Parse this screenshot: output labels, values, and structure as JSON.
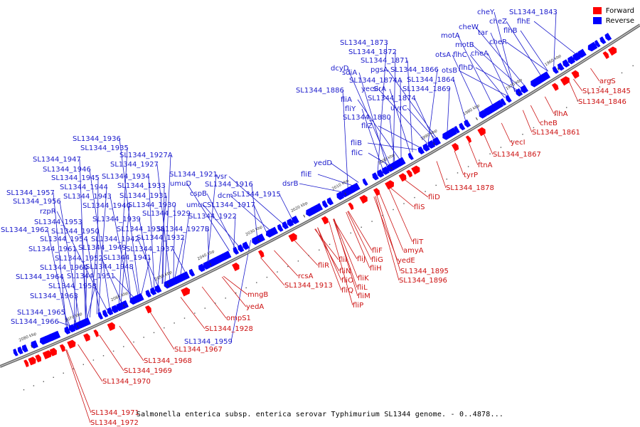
{
  "colors": {
    "forward": "#ff0000",
    "reverse": "#0000ff",
    "backbone": "#777777"
  },
  "legend": {
    "forward": "Forward",
    "reverse": "Reverse"
  },
  "caption": "Salmonella enterica subsp. enterica serovar Typhimurium SL1344 genome. - 0..4878...",
  "ticks": [
    "1960 kbp",
    "1970 kbp",
    "1980 kbp",
    "1990 kbp",
    "2000 kbp",
    "2010 kbp",
    "2020 kbp",
    "2030 kbp",
    "2040 kbp",
    "2050 kbp",
    "2060 kbp",
    "2070 kbp",
    "2080 kbp"
  ],
  "reverse_labels": [
    "cheY",
    "SL1344_1843",
    "cheZ",
    "flhE",
    "cheW",
    "tar",
    "flhB",
    "motA",
    "cheR",
    "motB",
    "cheA",
    "otsA",
    "flhC",
    "flhD",
    "otsB",
    "SL1344_1873",
    "SL1344_1872",
    "SL1344_1871",
    "dcyD",
    "pgsA",
    "SL1344_1866",
    "sdiA",
    "SL1344_1874A",
    "SL1344_1864",
    "yecS",
    "sirA",
    "SL1344_1869",
    "SL1344_1886",
    "fliA",
    "SL1344_1874",
    "fliY",
    "uvrC",
    "SL1344_1880",
    "fliZ",
    "fliB",
    "fliC",
    "yedD",
    "fliE",
    "dsrB",
    "SL1344_1936",
    "SL1344_1935",
    "SL1344_1927A",
    "SL1344_1947",
    "SL1344_1927",
    "SL1344_1946",
    "SL1344_1921",
    "SL1344_1945",
    "SL1344_1934",
    "umuD",
    "vsr",
    "SL1344_1944",
    "SL1344_1933",
    "SL1344_1916",
    "SL1344_1957",
    "SL1344_1943",
    "SL1344_1931",
    "cspB",
    "dcm",
    "SL1344_1915",
    "SL1344_1956",
    "SL1344_1940",
    "SL1344_1930",
    "umuC",
    "SL1344_1917",
    "rzpR",
    "SL1344_1929",
    "SL1344_1922",
    "SL1344_1953",
    "SL1344_1939",
    "SL1344_1962",
    "SL1344_1950",
    "SL1344_1938",
    "SL1344_1927B",
    "SL1344_1954",
    "SL1344_1942",
    "SL1344_1932",
    "SL1344_1961",
    "SL1344_1949",
    "SL1344_1937",
    "SL1344_1952",
    "SL1344_1941",
    "SL1344_1960",
    "SL1344_1948",
    "SL1344_1964",
    "SL1344_1951",
    "SL1344_1958",
    "SL1344_1963",
    "SL1344_1965",
    "SL1344_1966",
    "SL1344_1959"
  ],
  "forward_labels": [
    "argS",
    "SL1344_1845",
    "SL1344_1846",
    "flhA",
    "cheB",
    "SL1344_1861",
    "yecI",
    "SL1344_1867",
    "ftnA",
    "tyrP",
    "SL1344_1878",
    "fliD",
    "fliS",
    "fliT",
    "amyA",
    "fliF",
    "yedE",
    "fliG",
    "fliJ",
    "fliH",
    "SL1344_1895",
    "fliI",
    "fliK",
    "SL1344_1896",
    "fliN",
    "fliL",
    "fliO",
    "fliM",
    "fliP",
    "fliQ",
    "fliR",
    "rcsA",
    "SL1344_1913",
    "mngB",
    "yedA",
    "ompS1",
    "SL1344_1928",
    "SL1344_1967",
    "SL1344_1968",
    "SL1344_1969",
    "SL1344_1970",
    "SL1344_1971",
    "SL1344_1972"
  ]
}
